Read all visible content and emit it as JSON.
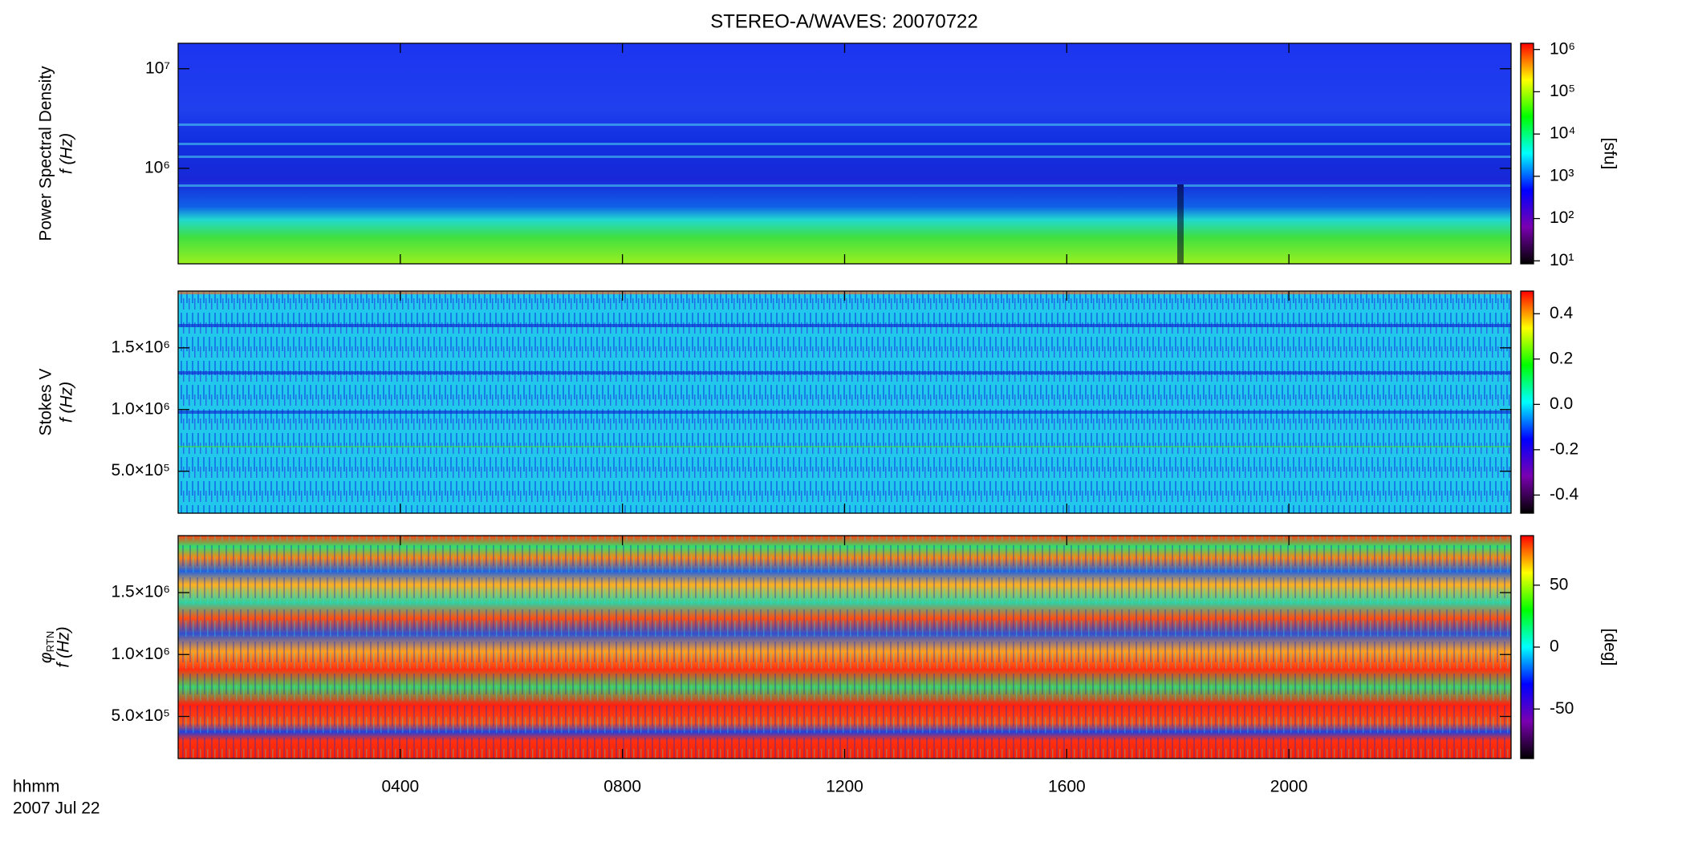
{
  "title": "STEREO-A/WAVES: 20070722",
  "x_axis": {
    "xlim": [
      0,
      24
    ],
    "xticks": [
      {
        "value": 4,
        "label": "0400"
      },
      {
        "value": 8,
        "label": "0800"
      },
      {
        "value": 12,
        "label": "1200"
      },
      {
        "value": 16,
        "label": "1600"
      },
      {
        "value": 20,
        "label": "2000"
      }
    ],
    "labels": [
      "hhmm",
      "2007 Jul 22"
    ]
  },
  "chart_data": [
    {
      "type": "heatmap",
      "ylabel": [
        "Power Spectral Density",
        "f (Hz)"
      ],
      "log_y": true,
      "ylim": [
        110000,
        18000000
      ],
      "yticks": [
        {
          "value": 1000000,
          "label": "10⁶"
        },
        {
          "value": 10000000,
          "label": "10⁷"
        }
      ],
      "colormap": [
        "#000000",
        "#7a00b0",
        "#0000ff",
        "#00ffff",
        "#00ff00",
        "#ffff00",
        "#ff0000"
      ],
      "log_c": true,
      "clim": [
        8.5,
        1400000
      ],
      "cticks": [
        {
          "value": 10,
          "label": "10¹"
        },
        {
          "value": 100,
          "label": "10²"
        },
        {
          "value": 1000,
          "label": "10³"
        },
        {
          "value": 10000,
          "label": "10⁴"
        },
        {
          "value": 100000,
          "label": "10⁵"
        },
        {
          "value": 1000000,
          "label": "10⁶"
        }
      ],
      "clabel": "[sfu]"
    },
    {
      "type": "heatmap",
      "ylabel": [
        "Stokes V",
        "f (Hz)"
      ],
      "log_y": false,
      "ylim": [
        160000,
        1960000
      ],
      "yticks": [
        {
          "value": 500000,
          "label": "5.0×10⁵"
        },
        {
          "value": 1000000,
          "label": "1.0×10⁶"
        },
        {
          "value": 1500000,
          "label": "1.5×10⁶"
        }
      ],
      "colormap": [
        "#000000",
        "#7a00b0",
        "#0000ff",
        "#00ffff",
        "#00ff00",
        "#ffff00",
        "#ff0000"
      ],
      "log_c": false,
      "clim": [
        -0.48,
        0.5
      ],
      "cticks": [
        -0.4,
        -0.2,
        {
          "value": 0,
          "label": "0.0"
        },
        0.2,
        0.4
      ]
    },
    {
      "type": "heatmap",
      "ylabel": [
        "φ",
        "RTN",
        "f (Hz)"
      ],
      "log_y": false,
      "ylim": [
        160000,
        1960000
      ],
      "yticks": [
        {
          "value": 500000,
          "label": "5.0×10⁵"
        },
        {
          "value": 1000000,
          "label": "1.0×10⁶"
        },
        {
          "value": 1500000,
          "label": "1.5×10⁶"
        }
      ],
      "colormap": [
        "#000000",
        "#7a00b0",
        "#0000ff",
        "#00ffff",
        "#00ff00",
        "#ffff00",
        "#ff0000"
      ],
      "log_c": false,
      "clim": [
        -90,
        90
      ],
      "cticks": [
        -50,
        0,
        50
      ],
      "clabel": "[deg]"
    }
  ]
}
